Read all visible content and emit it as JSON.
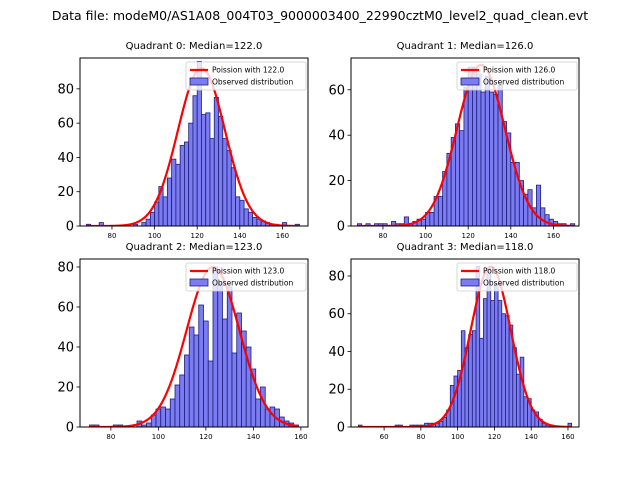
{
  "suptitle": "Data file: modeM0/AS1A08_004T03_9000003400_22990cztM0_level2_quad_clean.evt",
  "colors": {
    "bar_fill": "#7b7bf2",
    "bar_edge": "#1f1f7a",
    "curve": "#ff0000"
  },
  "chart_data": [
    {
      "type": "bar",
      "title": "Quadrant 0: Median=122.0",
      "median": 122.0,
      "legend": [
        "Poission with 122.0",
        "Observed distribution"
      ],
      "legend_position": "top-right",
      "xlim": [
        65,
        172
      ],
      "ylim": [
        0,
        98
      ],
      "xticks": [
        80,
        100,
        120,
        140,
        160
      ],
      "yticks": [
        0,
        20,
        40,
        60,
        80
      ],
      "bin_width": 2,
      "bin_starts": [
        68,
        70,
        72,
        74,
        76,
        78,
        80,
        82,
        84,
        86,
        88,
        90,
        92,
        94,
        96,
        98,
        100,
        102,
        104,
        106,
        108,
        110,
        112,
        114,
        116,
        118,
        120,
        122,
        124,
        126,
        128,
        130,
        132,
        134,
        136,
        138,
        140,
        142,
        144,
        146,
        148,
        150,
        152,
        154,
        156,
        158,
        160,
        162,
        164,
        166
      ],
      "values": [
        1,
        0,
        0,
        2,
        0,
        0,
        0,
        0,
        0,
        0,
        0,
        1,
        0,
        2,
        4,
        8,
        14,
        23,
        17,
        28,
        39,
        36,
        47,
        49,
        60,
        76,
        96,
        65,
        66,
        51,
        75,
        64,
        51,
        44,
        34,
        17,
        15,
        10,
        8,
        5,
        4,
        3,
        2,
        1,
        1,
        0,
        2,
        0,
        0,
        1
      ],
      "poisson_mean": 122.0,
      "poisson_peak": 92
    },
    {
      "type": "bar",
      "title": "Quadrant 1: Median=126.0",
      "median": 126.0,
      "legend": [
        "Poission with 126.0",
        "Observed distribution"
      ],
      "legend_position": "top-right",
      "xlim": [
        65,
        172
      ],
      "ylim": [
        0,
        74
      ],
      "xticks": [
        80,
        100,
        120,
        140,
        160
      ],
      "yticks": [
        0,
        20,
        40,
        60
      ],
      "bin_width": 2,
      "bin_starts": [
        68,
        70,
        72,
        74,
        76,
        78,
        80,
        82,
        84,
        86,
        88,
        90,
        92,
        94,
        96,
        98,
        100,
        102,
        104,
        106,
        108,
        110,
        112,
        114,
        116,
        118,
        120,
        122,
        124,
        126,
        128,
        130,
        132,
        134,
        136,
        138,
        140,
        142,
        144,
        146,
        148,
        150,
        152,
        154,
        156,
        158,
        160,
        162,
        164,
        166,
        168
      ],
      "values": [
        1,
        0,
        1,
        0,
        1,
        1,
        1,
        0,
        2,
        1,
        1,
        4,
        1,
        2,
        3,
        3,
        6,
        6,
        13,
        13,
        24,
        32,
        39,
        45,
        42,
        61,
        70,
        70,
        67,
        59,
        66,
        59,
        58,
        62,
        46,
        41,
        28,
        28,
        20,
        14,
        16,
        8,
        18,
        8,
        5,
        3,
        2,
        1,
        1,
        0,
        1
      ],
      "poisson_mean": 126.0,
      "poisson_peak": 71
    },
    {
      "type": "bar",
      "title": "Quadrant 2: Median=123.0",
      "median": 123.0,
      "legend": [
        "Poission with 123.0",
        "Observed distribution"
      ],
      "legend_position": "top-right",
      "xlim": [
        67,
        163
      ],
      "ylim": [
        0,
        84
      ],
      "xticks": [
        80,
        100,
        120,
        140,
        160
      ],
      "yticks": [
        0,
        20,
        40,
        60,
        80
      ],
      "bin_width": 2,
      "bin_starts": [
        71,
        73,
        75,
        77,
        79,
        81,
        83,
        85,
        87,
        89,
        91,
        93,
        95,
        97,
        99,
        101,
        103,
        105,
        107,
        109,
        111,
        113,
        115,
        117,
        119,
        121,
        123,
        125,
        127,
        129,
        131,
        133,
        135,
        137,
        139,
        141,
        143,
        145,
        147,
        149,
        151,
        153,
        155,
        157
      ],
      "values": [
        1,
        1,
        0,
        0,
        0,
        1,
        1,
        0,
        0,
        0,
        3,
        1,
        2,
        6,
        9,
        10,
        9,
        14,
        21,
        26,
        36,
        50,
        46,
        61,
        53,
        33,
        80,
        72,
        54,
        70,
        37,
        57,
        48,
        40,
        29,
        14,
        20,
        9,
        10,
        9,
        5,
        3,
        2,
        1
      ],
      "poisson_mean": 123.0,
      "poisson_peak": 80
    },
    {
      "type": "bar",
      "title": "Quadrant 3: Median=118.0",
      "median": 118.0,
      "legend": [
        "Poission with 118.0",
        "Observed distribution"
      ],
      "legend_position": "top-right",
      "xlim": [
        42,
        166
      ],
      "ylim": [
        0,
        89
      ],
      "xticks": [
        60,
        80,
        100,
        120,
        140,
        160
      ],
      "yticks": [
        0,
        20,
        40,
        60,
        80
      ],
      "bin_width": 2,
      "bin_starts": [
        46,
        48,
        50,
        52,
        54,
        56,
        58,
        60,
        62,
        64,
        66,
        68,
        70,
        72,
        74,
        76,
        78,
        80,
        82,
        84,
        86,
        88,
        90,
        92,
        94,
        96,
        98,
        100,
        102,
        104,
        106,
        108,
        110,
        112,
        114,
        116,
        118,
        120,
        122,
        124,
        126,
        128,
        130,
        132,
        134,
        136,
        138,
        140,
        142,
        144,
        146,
        148,
        150,
        152,
        154,
        156,
        158,
        160
      ],
      "values": [
        1,
        0,
        0,
        0,
        0,
        0,
        0,
        0,
        0,
        0,
        1,
        1,
        0,
        0,
        1,
        1,
        1,
        1,
        2,
        2,
        2,
        2,
        3,
        5,
        9,
        22,
        27,
        30,
        51,
        42,
        49,
        51,
        85,
        47,
        68,
        84,
        67,
        76,
        67,
        60,
        59,
        54,
        42,
        28,
        37,
        16,
        15,
        9,
        8,
        4,
        2,
        1,
        1,
        0,
        0,
        0,
        0,
        2
      ],
      "poisson_mean": 118.0,
      "poisson_peak": 85
    }
  ]
}
